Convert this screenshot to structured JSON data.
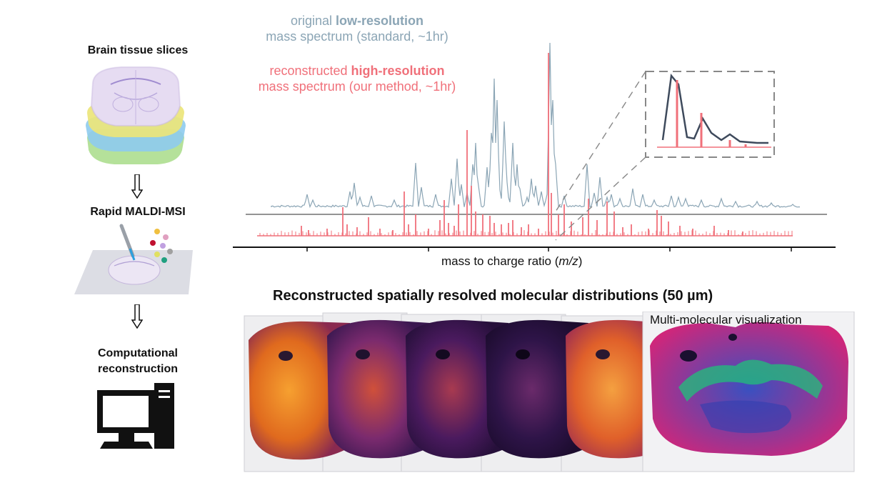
{
  "workflow": {
    "step1_label": "Brain tissue slices",
    "step2_label": "Rapid MALDI-MSI",
    "step3_label_line1": "Computational",
    "step3_label_line2": "reconstruction"
  },
  "spectrum": {
    "legend_low": {
      "prefix": "original ",
      "bold": "low-resolution",
      "line2": "mass spectrum (standard, ~1hr)",
      "color": "#8ba5b5"
    },
    "legend_high": {
      "prefix": "reconstructed ",
      "bold": "high-resolution",
      "line2": "mass spectrum (our method, ~1hr)",
      "color": "#f0707a"
    },
    "axis_label_prefix": "mass to charge ratio (",
    "axis_label_italic": "m/z",
    "axis_label_suffix": ")"
  },
  "distributions": {
    "title": "Reconstructed spatially resolved molecular distributions (50 µm)",
    "overlay_label": "Multi-molecular visualization",
    "colors": {
      "inferno_light": "#f08a2a",
      "inferno_dark": "#2a1240",
      "overlay_pink": "#d0267a",
      "overlay_green": "#20c07a",
      "overlay_blue": "#3040b0"
    }
  }
}
